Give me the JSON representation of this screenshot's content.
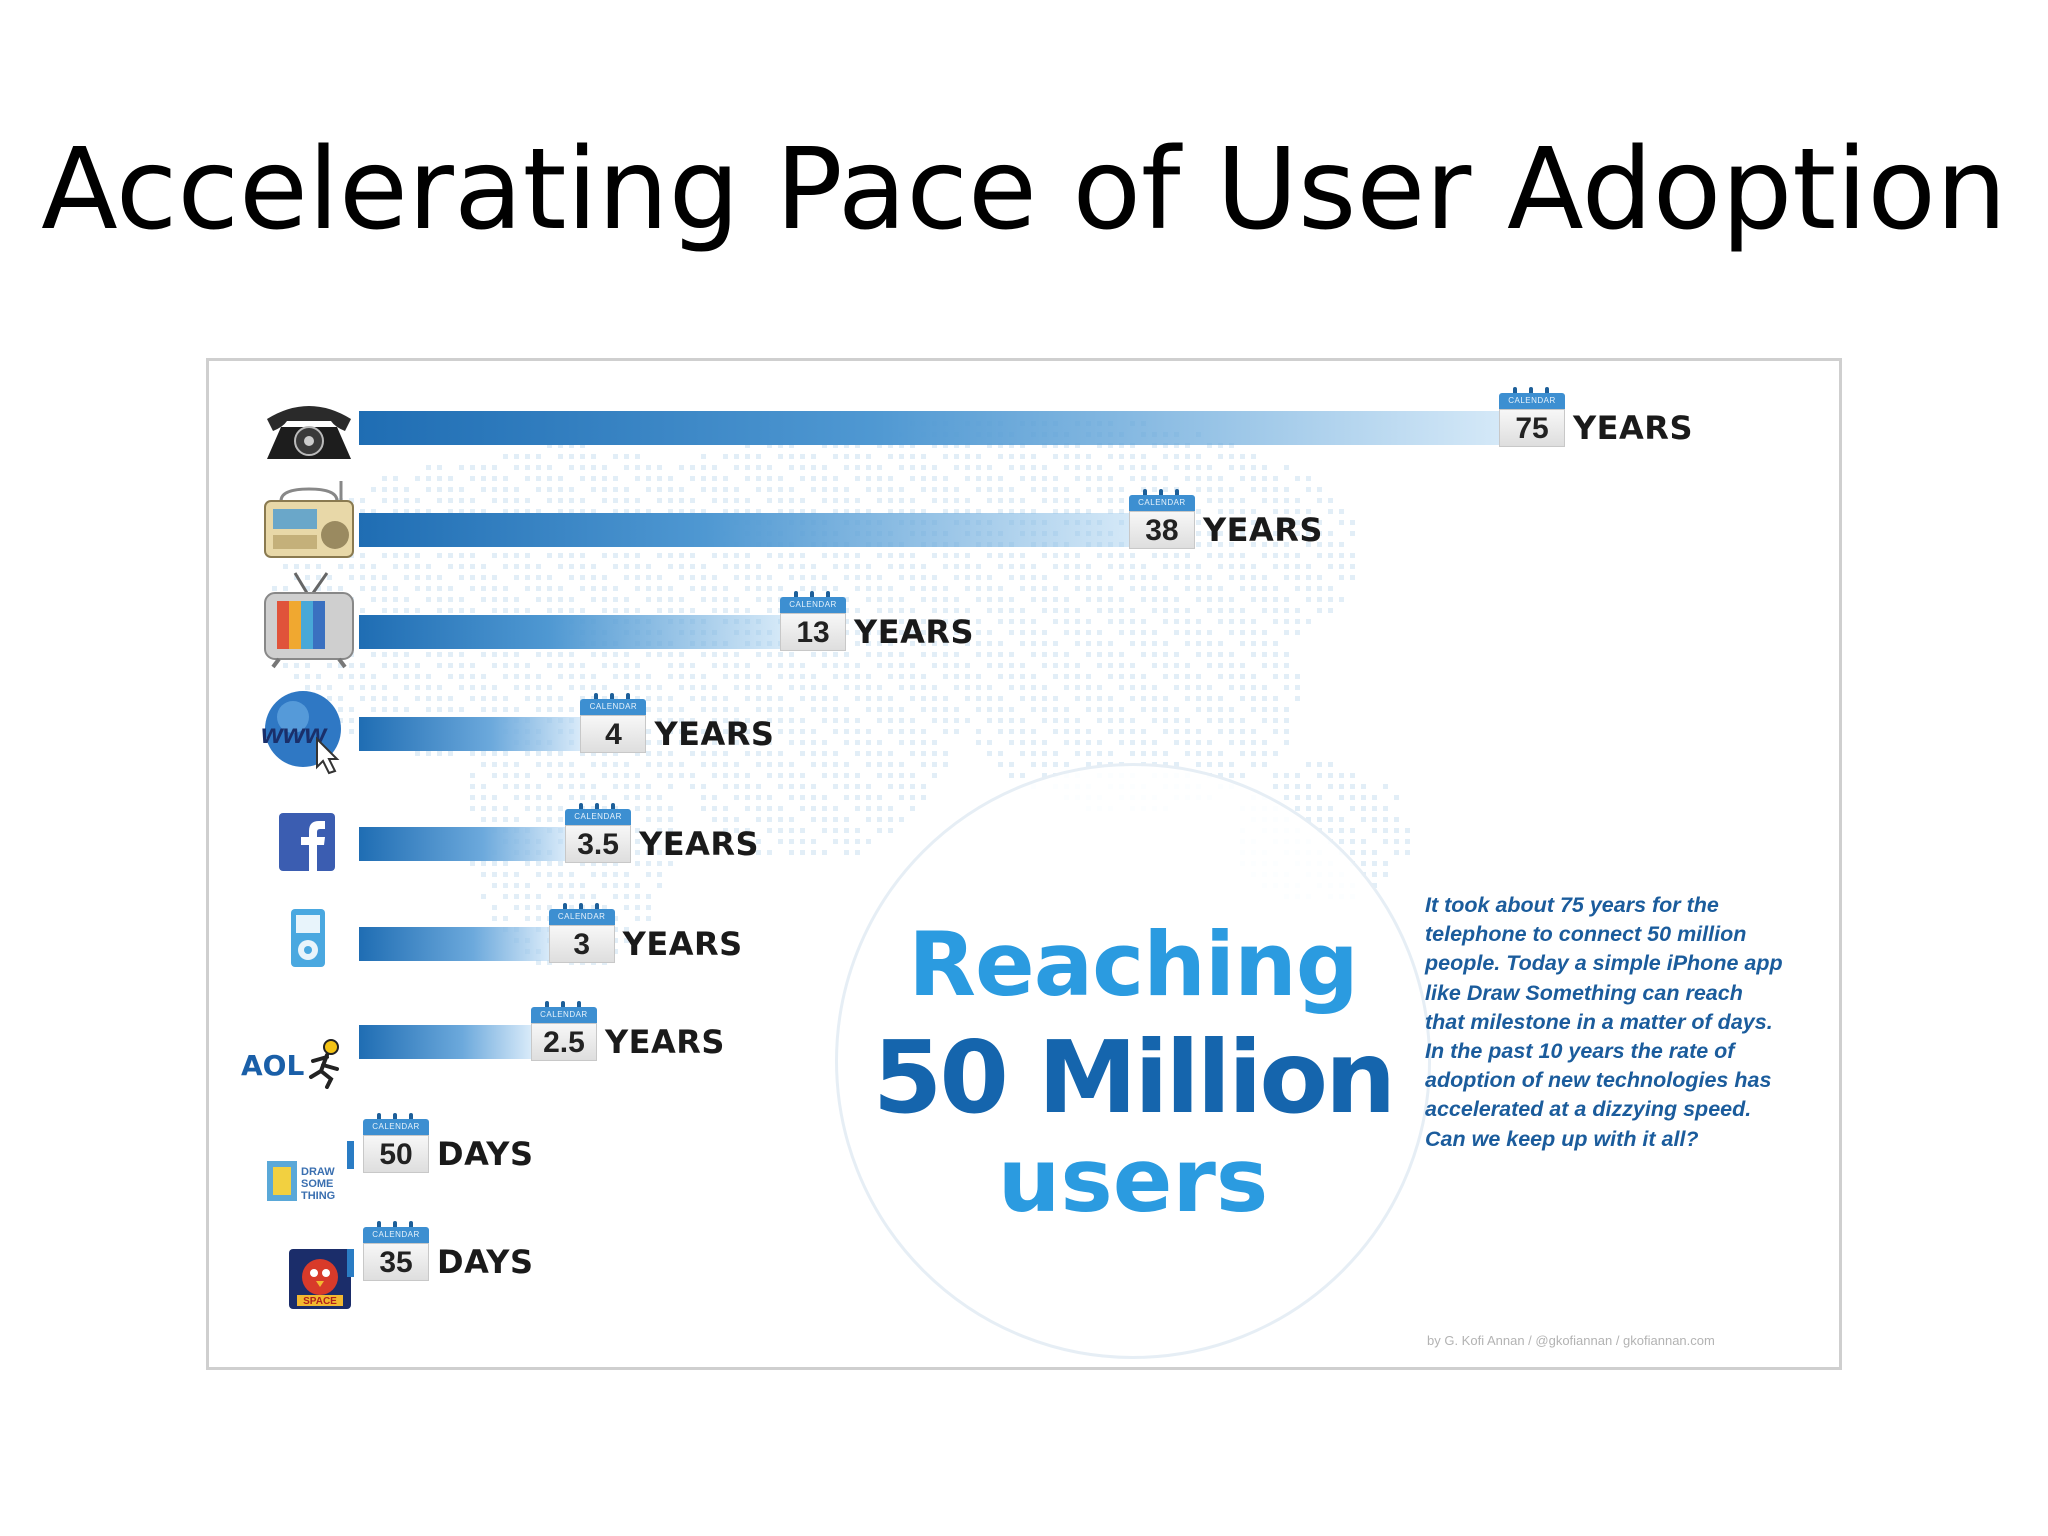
{
  "slide": {
    "title": "Accelerating Pace of User Adoption"
  },
  "infographic": {
    "calendar_label": "CALENDAR",
    "headline": {
      "line1": "Reaching",
      "line2": "50 Million",
      "line3": "users"
    },
    "blurb": "It took about 75 years for the telephone to connect 50 million people. Today a simple iPhone app like Draw Something can reach that milestone in a matter of days. In the past 10 years the rate of adoption of new technologies has accelerated at a dizzying speed. Can we keep up with it all?",
    "credit": "by G. Kofi Annan / @gkofiannan / gkofiannan.com",
    "aol_label": "AOL",
    "www_label": "www",
    "draw_something_label": "DRAW SOME THING",
    "space_label": "SPACE",
    "colors": {
      "bar": "#1f6db3",
      "headline_light": "#2b9be0",
      "headline_dark": "#1565ad",
      "blurb": "#1b5c9c"
    }
  },
  "chart_data": {
    "type": "bar",
    "orientation": "horizontal",
    "title": "Reaching 50 Million users",
    "categories": [
      "telephone-icon",
      "radio-icon",
      "television-icon",
      "www-icon",
      "facebook-icon",
      "ipod-icon",
      "aol-icon",
      "draw-something-icon",
      "angry-birds-space-icon"
    ],
    "values_years": [
      75,
      38,
      13,
      4,
      3.5,
      3,
      2.5,
      0.137,
      0.096
    ],
    "series": [
      {
        "values": [
          75,
          38,
          13,
          4,
          3.5,
          3,
          2.5,
          50,
          35
        ],
        "labels": [
          "75",
          "38",
          "13",
          "4",
          "3.5",
          "3",
          "2.5",
          "50",
          "35"
        ],
        "units": [
          "YEARS",
          "YEARS",
          "YEARS",
          "YEARS",
          "YEARS",
          "YEARS",
          "YEARS",
          "DAYS",
          "DAYS"
        ]
      }
    ],
    "grid": false,
    "legend": "none"
  }
}
